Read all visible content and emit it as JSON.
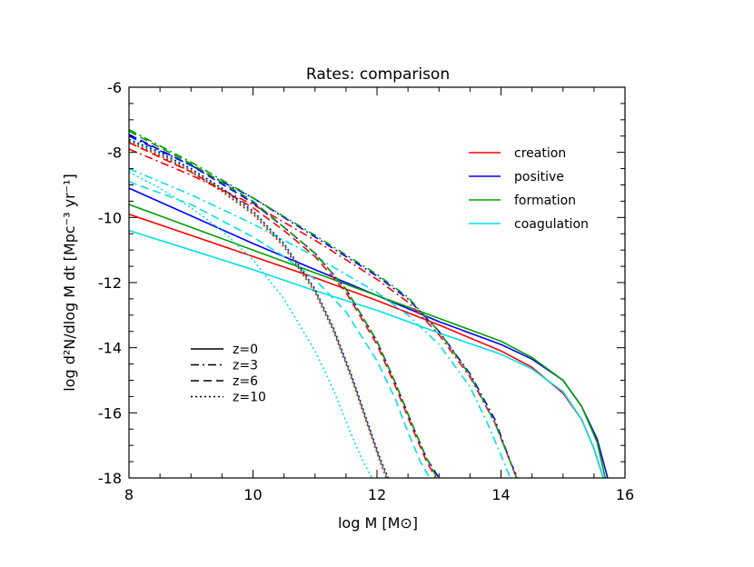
{
  "chart_data": {
    "type": "line",
    "title": "Rates: comparison",
    "xlabel": "log M [M⊙]",
    "ylabel": "log d²N/dlog M dt [Mpc⁻³ yr⁻¹]",
    "xlim": [
      8,
      16
    ],
    "ylim": [
      -18,
      -6
    ],
    "xticks": [
      "8",
      "10",
      "12",
      "14",
      "16"
    ],
    "yticks": [
      "-6",
      "-8",
      "-10",
      "-12",
      "-14",
      "-16",
      "-18"
    ],
    "color_legend": [
      {
        "label": "creation",
        "color": "#ff0000"
      },
      {
        "label": "positive",
        "color": "#0000ff"
      },
      {
        "label": "formation",
        "color": "#00a000"
      },
      {
        "label": "coagulation",
        "color": "#00e0e8"
      }
    ],
    "style_legend": [
      {
        "label": "z=0",
        "dash": "solid"
      },
      {
        "label": "z=3",
        "dash": "dashdot"
      },
      {
        "label": "z=6",
        "dash": "dashed"
      },
      {
        "label": "z=10",
        "dash": "dotted"
      }
    ],
    "series": [
      {
        "name": "creation",
        "z": "z=0",
        "dash": "solid",
        "color": "#ff0000",
        "x": [
          8,
          9,
          10,
          11,
          12,
          13,
          14,
          14.5,
          15,
          15.3,
          15.5,
          15.65
        ],
        "y": [
          -9.9,
          -10.55,
          -11.2,
          -11.85,
          -12.55,
          -13.3,
          -14.1,
          -14.6,
          -15.4,
          -16.2,
          -17.1,
          -18
        ]
      },
      {
        "name": "positive",
        "z": "z=0",
        "dash": "solid",
        "color": "#0000ff",
        "x": [
          8,
          9,
          10,
          11,
          12,
          13,
          14,
          14.5,
          15,
          15.3,
          15.55,
          15.72
        ],
        "y": [
          -9.1,
          -9.95,
          -10.8,
          -11.6,
          -12.4,
          -13.2,
          -13.9,
          -14.35,
          -15.0,
          -15.8,
          -16.8,
          -18
        ]
      },
      {
        "name": "formation",
        "z": "z=0",
        "dash": "solid",
        "color": "#00a000",
        "x": [
          8,
          9,
          10,
          11,
          12,
          13,
          14,
          14.5,
          15,
          15.3,
          15.55,
          15.68
        ],
        "y": [
          -9.6,
          -10.3,
          -11.0,
          -11.7,
          -12.4,
          -13.1,
          -13.8,
          -14.3,
          -15.0,
          -15.8,
          -16.9,
          -18
        ]
      },
      {
        "name": "coagulation",
        "z": "z=0",
        "dash": "solid",
        "color": "#00e0e8",
        "x": [
          8,
          9,
          10,
          11,
          12,
          13,
          14,
          14.5,
          15,
          15.3,
          15.5,
          15.65
        ],
        "y": [
          -10.4,
          -11.0,
          -11.6,
          -12.25,
          -12.85,
          -13.55,
          -14.2,
          -14.65,
          -15.35,
          -16.2,
          -17.1,
          -18
        ]
      },
      {
        "name": "creation",
        "z": "z=3",
        "dash": "dashdot",
        "color": "#ff0000",
        "x": [
          8,
          9,
          10,
          11,
          12,
          12.5,
          13,
          13.5,
          13.9,
          14.15,
          14.25
        ],
        "y": [
          -7.9,
          -8.7,
          -9.6,
          -10.7,
          -11.9,
          -12.6,
          -13.6,
          -14.9,
          -16.3,
          -17.5,
          -18
        ]
      },
      {
        "name": "positive",
        "z": "z=3",
        "dash": "dashdot",
        "color": "#0000ff",
        "x": [
          8,
          9,
          10,
          11,
          12,
          12.5,
          13,
          13.5,
          13.9,
          14.15,
          14.27
        ],
        "y": [
          -7.5,
          -8.4,
          -9.4,
          -10.6,
          -11.8,
          -12.5,
          -13.5,
          -14.8,
          -16.2,
          -17.5,
          -18
        ]
      },
      {
        "name": "formation",
        "z": "z=3",
        "dash": "dashdot",
        "color": "#00a000",
        "x": [
          8,
          9,
          10,
          11,
          12,
          12.5,
          13,
          13.5,
          13.9,
          14.15,
          14.25
        ],
        "y": [
          -7.3,
          -8.3,
          -9.4,
          -10.55,
          -11.75,
          -12.45,
          -13.5,
          -14.85,
          -16.3,
          -17.5,
          -18
        ]
      },
      {
        "name": "coagulation",
        "z": "z=3",
        "dash": "dashdot",
        "color": "#00e0e8",
        "x": [
          8,
          9,
          10,
          11,
          12,
          12.5,
          13,
          13.5,
          13.8,
          14.0,
          14.15
        ],
        "y": [
          -8.5,
          -9.3,
          -10.2,
          -11.2,
          -12.3,
          -13.0,
          -13.9,
          -15.2,
          -16.4,
          -17.3,
          -18
        ]
      },
      {
        "name": "creation",
        "z": "z=6",
        "dash": "dashed",
        "color": "#ff0000",
        "x": [
          8,
          9,
          10,
          10.5,
          11,
          11.5,
          12,
          12.3,
          12.6,
          12.8,
          12.95
        ],
        "y": [
          -7.7,
          -8.6,
          -9.7,
          -10.4,
          -11.2,
          -12.3,
          -13.9,
          -15.2,
          -16.6,
          -17.5,
          -18
        ]
      },
      {
        "name": "positive",
        "z": "z=6",
        "dash": "dashed",
        "color": "#0000ff",
        "x": [
          8,
          9,
          10,
          10.5,
          11,
          11.5,
          12,
          12.3,
          12.6,
          12.8,
          13.0
        ],
        "y": [
          -7.45,
          -8.4,
          -9.55,
          -10.3,
          -11.1,
          -12.2,
          -13.8,
          -15.1,
          -16.5,
          -17.4,
          -18
        ]
      },
      {
        "name": "formation",
        "z": "z=6",
        "dash": "dashed",
        "color": "#00a000",
        "x": [
          8,
          9,
          10,
          10.5,
          11,
          11.5,
          12,
          12.3,
          12.6,
          12.8,
          12.97
        ],
        "y": [
          -7.35,
          -8.35,
          -9.5,
          -10.3,
          -11.1,
          -12.2,
          -13.8,
          -15.1,
          -16.5,
          -17.4,
          -18
        ]
      },
      {
        "name": "coagulation",
        "z": "z=6",
        "dash": "dashed",
        "color": "#00e0e8",
        "x": [
          8,
          9,
          10,
          10.5,
          11,
          11.5,
          12,
          12.3,
          12.5,
          12.7,
          12.85
        ],
        "y": [
          -8.9,
          -9.6,
          -10.6,
          -11.2,
          -11.9,
          -12.9,
          -14.4,
          -15.6,
          -16.6,
          -17.5,
          -18
        ]
      },
      {
        "name": "creation",
        "z": "z=10",
        "dash": "dotted",
        "color": "#ff0000",
        "x": [
          8,
          8.5,
          9,
          9.5,
          10,
          10.5,
          11,
          11.3,
          11.6,
          11.85,
          12.05,
          12.15
        ],
        "y": [
          -7.7,
          -8.1,
          -8.6,
          -9.2,
          -9.9,
          -10.9,
          -12.3,
          -13.5,
          -15.0,
          -16.4,
          -17.5,
          -18
        ]
      },
      {
        "name": "positive",
        "z": "z=10",
        "dash": "dotted",
        "color": "#0000ff",
        "x": [
          8,
          8.5,
          9,
          9.5,
          10,
          10.5,
          11,
          11.3,
          11.6,
          11.85,
          12.05,
          12.18
        ],
        "y": [
          -7.6,
          -8.0,
          -8.5,
          -9.1,
          -9.8,
          -10.8,
          -12.2,
          -13.4,
          -14.9,
          -16.3,
          -17.4,
          -18
        ]
      },
      {
        "name": "formation",
        "z": "z=10",
        "dash": "dotted",
        "color": "#00a000",
        "x": [
          8,
          8.5,
          9,
          9.5,
          10,
          10.5,
          11,
          11.3,
          11.6,
          11.85,
          12.05,
          12.17
        ],
        "y": [
          -7.65,
          -8.05,
          -8.55,
          -9.15,
          -9.85,
          -10.85,
          -12.25,
          -13.45,
          -14.95,
          -16.35,
          -17.45,
          -18
        ]
      },
      {
        "name": "coagulation",
        "z": "z=10",
        "dash": "dotted",
        "color": "#00e0e8",
        "x": [
          8,
          8.5,
          9,
          9.5,
          10,
          10.5,
          11,
          11.3,
          11.55,
          11.75,
          11.92
        ],
        "y": [
          -8.6,
          -9.1,
          -9.7,
          -10.4,
          -11.3,
          -12.5,
          -14.1,
          -15.3,
          -16.5,
          -17.4,
          -18
        ]
      }
    ]
  }
}
